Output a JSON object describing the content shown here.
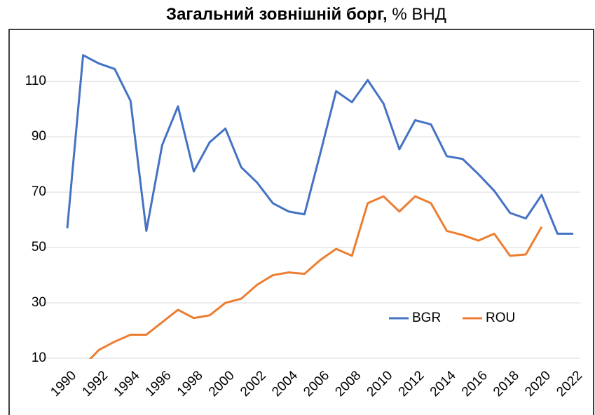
{
  "chart_data": {
    "type": "line",
    "title": "Загальний зовнішній борг,",
    "subtitle": "% ВНД",
    "x": [
      1990,
      1991,
      1992,
      1993,
      1994,
      1995,
      1996,
      1997,
      1998,
      1999,
      2000,
      2001,
      2002,
      2003,
      2004,
      2005,
      2006,
      2007,
      2008,
      2009,
      2010,
      2011,
      2012,
      2013,
      2014,
      2015,
      2016,
      2017,
      2018,
      2019,
      2020,
      2021,
      2022
    ],
    "xlim": [
      1990,
      2022
    ],
    "xticks": [
      1990,
      1992,
      1994,
      1996,
      1998,
      2000,
      2002,
      2004,
      2006,
      2008,
      2010,
      2012,
      2014,
      2016,
      2018,
      2020,
      2022
    ],
    "ylim": [
      10,
      125
    ],
    "yticks": [
      10,
      30,
      50,
      70,
      90,
      110
    ],
    "grid": true,
    "legend": "lower right",
    "series": [
      {
        "name": "BGR",
        "color": "#4472c4",
        "values": [
          57,
          119.5,
          116.5,
          114.5,
          103,
          56,
          87,
          101,
          77.5,
          88,
          93,
          79,
          73.5,
          66,
          63,
          62,
          84,
          106.5,
          102.5,
          110.5,
          102,
          85.5,
          96,
          94.5,
          83,
          82,
          76.5,
          70.5,
          62.5,
          60.5,
          69,
          55,
          55
        ]
      },
      {
        "name": "ROU",
        "color": "#ed7d31",
        "values": [
          null,
          7,
          13,
          16,
          18.5,
          18.5,
          23,
          27.5,
          24.5,
          25.5,
          30,
          31.5,
          36.5,
          40,
          41,
          40.5,
          45.5,
          49.5,
          47,
          66,
          68.5,
          63,
          68.5,
          66,
          56,
          54.5,
          52.5,
          55,
          47,
          47.5,
          57.5,
          null,
          null
        ]
      }
    ]
  }
}
